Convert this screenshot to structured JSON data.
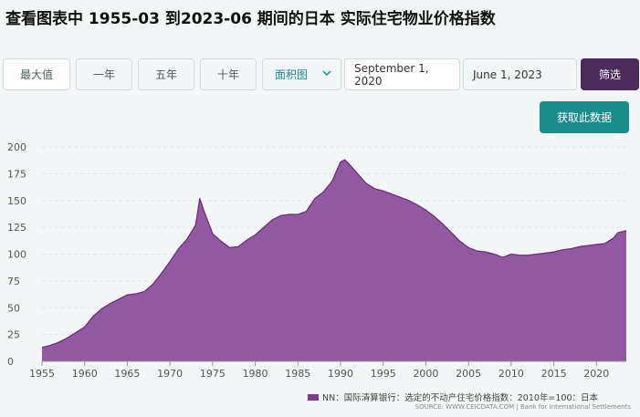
{
  "title": "查看图表中 1955-03 到2023-06 期间的日本 实际住宅物业价格指数",
  "toolbar": {
    "buttons": [
      "最大值",
      "一年",
      "五年",
      "十年"
    ],
    "chart_type": "面积图",
    "date_start": "September 1, 2020",
    "date_end": "June 1, 2023",
    "filter": "筛选",
    "get_data": "获取此数据"
  },
  "legend_label": "NN：国际清算银行：选定的不动产住宅价格指数：2010年=100：日本",
  "source": "SOURCE: WWW.CEICDATA.COM | Bank for International Settlements",
  "colors": {
    "area": "#8b4a9a",
    "area_stroke": "#6a2a7a",
    "accent": "#198c8c",
    "filter_bg": "#4a2b5a"
  },
  "chart_data": {
    "type": "area",
    "title": "",
    "xlabel": "",
    "ylabel": "",
    "xlim": [
      1955,
      2023.5
    ],
    "ylim": [
      0,
      200
    ],
    "yticks": [
      0,
      25,
      50,
      75,
      100,
      125,
      150,
      175,
      200
    ],
    "xticks": [
      1955,
      1960,
      1965,
      1970,
      1975,
      1980,
      1985,
      1990,
      1995,
      2000,
      2005,
      2010,
      2015,
      2020
    ],
    "grid": true,
    "legend": "bottom-right",
    "series": [
      {
        "name": "NN：国际清算银行：选定的不动产住宅价格指数：2010年=100：日本",
        "x": [
          1955,
          1956,
          1957,
          1958,
          1959,
          1960,
          1961,
          1962,
          1963,
          1964,
          1965,
          1966,
          1967,
          1968,
          1969,
          1970,
          1971,
          1972,
          1973,
          1973.5,
          1974,
          1975,
          1976,
          1977,
          1978,
          1979,
          1980,
          1981,
          1982,
          1983,
          1984,
          1985,
          1986,
          1987,
          1988,
          1989,
          1990,
          1990.5,
          1991,
          1992,
          1993,
          1994,
          1995,
          1996,
          1997,
          1998,
          1999,
          2000,
          2001,
          2002,
          2003,
          2004,
          2005,
          2006,
          2007,
          2008,
          2009,
          2010,
          2011,
          2012,
          2013,
          2014,
          2015,
          2016,
          2017,
          2018,
          2019,
          2020,
          2021,
          2022,
          2022.5,
          2023.5
        ],
        "values": [
          13,
          15,
          18,
          22,
          27,
          32,
          42,
          49,
          54,
          58,
          62,
          63,
          65,
          72,
          82,
          93,
          105,
          114,
          127,
          152,
          140,
          119,
          112,
          106,
          107,
          113,
          118,
          125,
          132,
          136,
          137,
          137,
          140,
          152,
          158,
          168,
          186,
          188,
          184,
          175,
          166,
          161,
          159,
          156,
          153,
          150,
          146,
          141,
          135,
          128,
          120,
          112,
          106,
          103,
          102,
          100,
          97,
          100,
          99,
          99,
          100,
          101,
          102,
          104,
          105,
          107,
          108,
          109,
          110,
          115,
          120,
          122
        ]
      }
    ]
  }
}
